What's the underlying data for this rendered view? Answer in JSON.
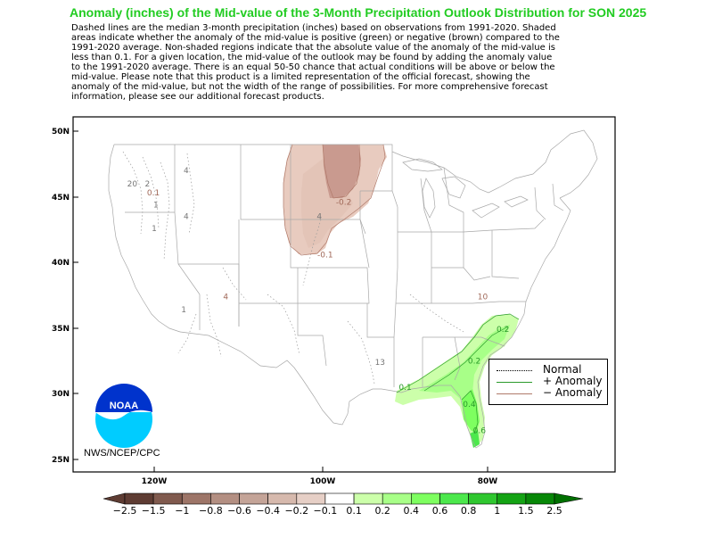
{
  "title": "Anomaly (inches) of the Mid-value of the 3-Month Precipitation Outlook Distribution for SON 2025",
  "description": [
    "Dashed lines are the median 3-month precipitation (inches) based on observations from 1991-2020.  Shaded",
    "areas indicate whether the anomaly of the mid-value is positive (green) or negative (brown) compared to the",
    "1991-2020 average.    Non-shaded regions indicate that the absolute value of the anomaly of the mid-value is",
    "less than 0.1.    For a given location, the mid-value of the outlook may be found by adding the anomaly value",
    "to the 1991-2020 average. There is an equal 50-50 chance that actual conditions will be above or below the",
    "mid-value. Please note that this product is a limited representation of the official forecast, showing the",
    "anomaly of the mid-value, but not the width of the range of possibilities. For more comprehensive forecast",
    "information, please see our additional forecast products."
  ],
  "axes": {
    "y_ticks": [
      "50N",
      "45N",
      "40N",
      "35N",
      "30N",
      "25N"
    ],
    "x_ticks": [
      "120W",
      "100W",
      "80W"
    ]
  },
  "legend": {
    "normal": "Normal",
    "positive": "+ Anomaly",
    "negative": "− Anomaly"
  },
  "credit": "NWS/NCEP/CPC",
  "logo_text": "NOAA",
  "contour_labels": [
    {
      "text": "20",
      "lat": 45.8,
      "lon": -122.6,
      "kind": "normal"
    },
    {
      "text": "2",
      "lat": 45.8,
      "lon": -120.8,
      "kind": "normal"
    },
    {
      "text": "0.1",
      "lat": 45.1,
      "lon": -120.1,
      "kind": "negative"
    },
    {
      "text": "1",
      "lat": 44.2,
      "lon": -119.8,
      "kind": "normal"
    },
    {
      "text": "4",
      "lat": 46.8,
      "lon": -116.2,
      "kind": "normal"
    },
    {
      "text": "4",
      "lat": 43.3,
      "lon": -116.2,
      "kind": "normal"
    },
    {
      "text": "1",
      "lat": 42.4,
      "lon": -120.0,
      "kind": "normal"
    },
    {
      "text": "4",
      "lat": 37.2,
      "lon": -111.5,
      "kind": "negative"
    },
    {
      "text": "1",
      "lat": 36.2,
      "lon": -116.5,
      "kind": "normal"
    },
    {
      "text": "-0.2",
      "lat": 44.4,
      "lon": -97.5,
      "kind": "negative"
    },
    {
      "text": "4",
      "lat": 43.3,
      "lon": -100.4,
      "kind": "normal"
    },
    {
      "text": "-0.1",
      "lat": 40.4,
      "lon": -99.7,
      "kind": "negative"
    },
    {
      "text": "10",
      "lat": 37.2,
      "lon": -81.0,
      "kind": "negative"
    },
    {
      "text": "13",
      "lat": 32.2,
      "lon": -93.2,
      "kind": "normal"
    },
    {
      "text": "0.1",
      "lat": 30.3,
      "lon": -90.2,
      "kind": "positive"
    },
    {
      "text": "0.2",
      "lat": 32.3,
      "lon": -82.0,
      "kind": "positive"
    },
    {
      "text": "0.2",
      "lat": 34.7,
      "lon": -78.6,
      "kind": "positive"
    },
    {
      "text": "0.4",
      "lat": 29.0,
      "lon": -82.6,
      "kind": "positive"
    },
    {
      "text": "0.6",
      "lat": 27.0,
      "lon": -81.4,
      "kind": "positive"
    }
  ],
  "colorbar": {
    "labels": [
      "−2.5",
      "−1.5",
      "−1",
      "−0.8",
      "−0.6",
      "−0.4",
      "−0.2",
      "−0.1",
      "0.1",
      "0.2",
      "0.4",
      "0.6",
      "0.8",
      "1",
      "1.5",
      "2.5"
    ],
    "colors": [
      "#5e3c33",
      "#805a4e",
      "#9d7568",
      "#b38f82",
      "#c4a498",
      "#d6b9ad",
      "#e6cfc6",
      "#ffffff",
      "#ccffaa",
      "#a8ff88",
      "#7eff60",
      "#4ce84c",
      "#2fc72f",
      "#14a314",
      "#078707"
    ],
    "end_left": "#5e3c33",
    "end_right": "#007000"
  },
  "shading": {
    "negative_light": "#e8cbbf",
    "negative_mid": "#d9b0a4",
    "negative_dark": "#c99a8f",
    "positive_light": "#ccffaa",
    "positive_mid": "#a8ff88",
    "positive_dark": "#4ce84c"
  }
}
